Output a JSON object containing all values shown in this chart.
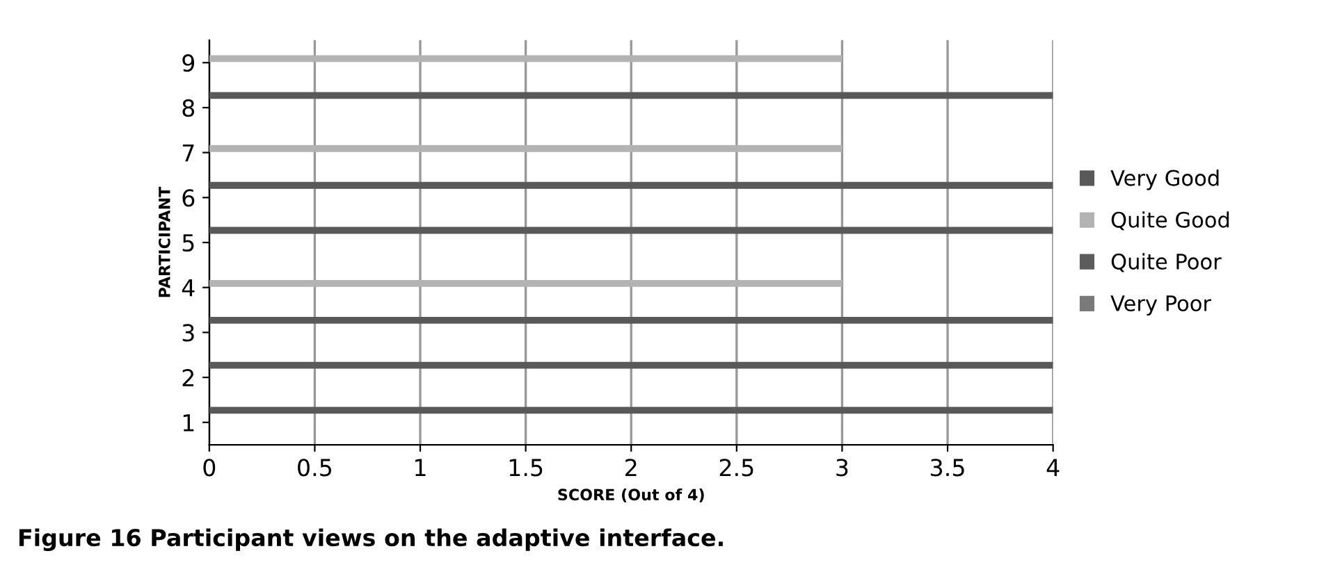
{
  "chart_data": {
    "type": "bar",
    "orientation": "horizontal",
    "categories": [
      "9",
      "8",
      "7",
      "6",
      "5",
      "4",
      "3",
      "2",
      "1"
    ],
    "series": [
      {
        "name": "Very Good",
        "color": "#595959",
        "values": [
          null,
          4,
          null,
          4,
          4,
          null,
          4,
          4,
          4
        ]
      },
      {
        "name": "Quite Good",
        "color": "#b3b3b3",
        "values": [
          3,
          null,
          3,
          null,
          null,
          3,
          null,
          null,
          null
        ]
      },
      {
        "name": "Quite Poor",
        "color": "#5c5c5c",
        "values": [
          null,
          null,
          null,
          null,
          null,
          null,
          null,
          null,
          null
        ]
      },
      {
        "name": "Very Poor",
        "color": "#7a7a7a",
        "values": [
          null,
          null,
          null,
          null,
          null,
          null,
          null,
          null,
          null
        ]
      }
    ],
    "xlabel": "SCORE (Out of 4)",
    "ylabel": "PARTICIPANT",
    "xlim": [
      0,
      4
    ],
    "xticks": [
      0,
      0.5,
      1,
      1.5,
      2,
      2.5,
      3,
      3.5,
      4
    ],
    "grid": "x",
    "legend": "right",
    "annotations": [
      "Figure 16 Participant views on the adaptive interface."
    ]
  }
}
